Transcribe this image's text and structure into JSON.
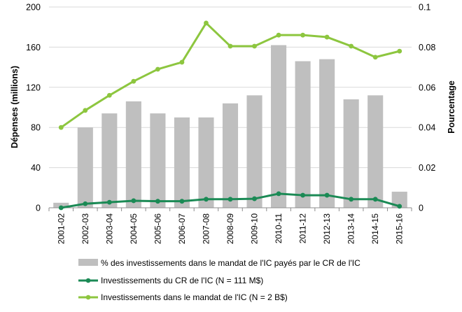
{
  "chart_data": {
    "type": "bar+line",
    "categories": [
      "2001-02",
      "2002-03",
      "2003-04",
      "2004-05",
      "2005-06",
      "2006-07",
      "2007-08",
      "2008-09",
      "2009-10",
      "2010-11",
      "2011-12",
      "2012-13",
      "2013-14",
      "2014-15",
      "2015-16"
    ],
    "ylabel_left": "Dépenses (millions)",
    "ylabel_right": "Pourcentage",
    "ylim_left": [
      0,
      200
    ],
    "yticks_left": [
      "0",
      "40",
      "80",
      "120",
      "160",
      "200"
    ],
    "ylim_right": [
      0,
      0.1
    ],
    "yticks_right": [
      "0",
      "0.02",
      "0.04",
      "0.06",
      "0.08",
      "0.1"
    ],
    "grid": true,
    "legend_position": "bottom",
    "bars": {
      "name": "% des investissements dans le mandat de l'IC payés par le CR de l'IC",
      "axis": "right",
      "color": "#bfbfbf",
      "values": [
        0.0025,
        0.04,
        0.047,
        0.053,
        0.047,
        0.045,
        0.045,
        0.052,
        0.056,
        0.081,
        0.073,
        0.074,
        0.054,
        0.056,
        0.008
      ]
    },
    "lines": [
      {
        "name": "Investissements du CR de l'IC (N = 111 M$)",
        "axis": "left",
        "color": "#1b8a55",
        "values": [
          0,
          4,
          5.5,
          7,
          6.5,
          6.5,
          8.5,
          8.5,
          9,
          14,
          12.5,
          12.5,
          8.5,
          8.5,
          1.5
        ]
      },
      {
        "name": "Investissements dans le mandat de l'IC (N = 2 B$)",
        "axis": "left",
        "color": "#8dc63f",
        "values": [
          80,
          97,
          112,
          126,
          138,
          145,
          184,
          161,
          161,
          172,
          172,
          170,
          161,
          150,
          156
        ]
      }
    ]
  }
}
